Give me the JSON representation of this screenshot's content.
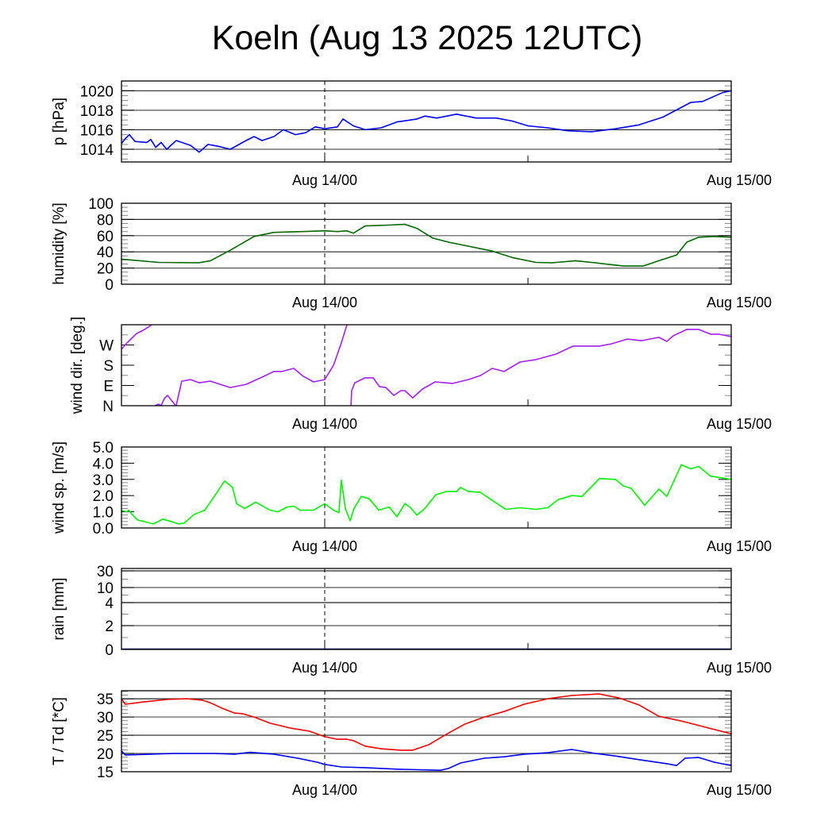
{
  "chart_data": {
    "type": "line",
    "title": "Koeln (Aug 13 2025 12UTC)",
    "x_unit": "hours since Aug 13 2025 12UTC",
    "xlim": [
      0,
      36
    ],
    "x_ticks": [
      {
        "x": 12,
        "label": "Aug 14/00"
      },
      {
        "x": 24,
        "label": ""
      },
      {
        "x": 36,
        "label": "Aug 15/00"
      }
    ],
    "reference_line_x": 12,
    "panels": [
      {
        "id": "pressure",
        "ylabel": "p [hPa]",
        "ylim": [
          1012.7,
          1021.0
        ],
        "grid": [
          1014,
          1016,
          1018,
          1020
        ],
        "y_ticks": [
          {
            "v": 1014,
            "label": "1014"
          },
          {
            "v": 1016,
            "label": "1016"
          },
          {
            "v": 1018,
            "label": "1018"
          },
          {
            "v": 1020,
            "label": "1020"
          }
        ],
        "minor_step": 0.5,
        "series": [
          {
            "name": "p",
            "color": "#0000ee",
            "wrap": false,
            "x": [
              0,
              0.23,
              0.47,
              0.8,
              1.5,
              1.73,
              2.02,
              2.34,
              2.67,
              3.23,
              4.08,
              4.59,
              5.11,
              5.72,
              6.42,
              7.36,
              7.83,
              8.3,
              9.0,
              9.56,
              10.27,
              10.88,
              11.44,
              12.0,
              12.75,
              13.08,
              13.69,
              14.39,
              15.33,
              16.27,
              17.44,
              17.91,
              18.61,
              19.78,
              20.95,
              22.13,
              23.06,
              24.0,
              25.17,
              26.34,
              27.75,
              29.16,
              30.56,
              31.97,
              33.61,
              34.31,
              35.48,
              36.0
            ],
            "y": [
              1014.6,
              1015.1,
              1015.5,
              1014.8,
              1014.7,
              1015.0,
              1014.2,
              1014.7,
              1014.0,
              1014.9,
              1014.4,
              1013.7,
              1014.5,
              1014.3,
              1014.0,
              1014.9,
              1015.3,
              1014.9,
              1015.3,
              1016.0,
              1015.5,
              1015.7,
              1016.3,
              1016.1,
              1016.3,
              1017.1,
              1016.4,
              1016.0,
              1016.2,
              1016.8,
              1017.1,
              1017.4,
              1017.2,
              1017.6,
              1017.2,
              1017.2,
              1016.9,
              1016.4,
              1016.2,
              1015.9,
              1015.8,
              1016.1,
              1016.5,
              1017.3,
              1018.8,
              1018.9,
              1019.8,
              1020.0
            ]
          }
        ]
      },
      {
        "id": "humidity",
        "ylabel": "humidity [%]",
        "ylim": [
          0,
          100
        ],
        "grid": [
          20,
          40,
          60,
          80
        ],
        "y_ticks": [
          {
            "v": 0,
            "label": "0"
          },
          {
            "v": 20,
            "label": "20"
          },
          {
            "v": 40,
            "label": "40"
          },
          {
            "v": 60,
            "label": "60"
          },
          {
            "v": 80,
            "label": "80"
          },
          {
            "v": 100,
            "label": "100"
          }
        ],
        "minor_step": 5,
        "series": [
          {
            "name": "humidity",
            "color": "#006400",
            "wrap": false,
            "x": [
              0,
              2.2,
              4.55,
              5.25,
              6.42,
              7.83,
              9.0,
              10.64,
              12.0,
              12.75,
              13.31,
              13.69,
              14.39,
              15.8,
              16.73,
              17.44,
              18.38,
              19.31,
              20.72,
              21.89,
              23.06,
              24.47,
              25.41,
              26.81,
              27.98,
              29.63,
              30.8,
              31.73,
              32.77,
              33.38,
              34.08,
              35.02,
              36.0
            ],
            "y": [
              31,
              27,
              26.5,
              29,
              42,
              59,
              64,
              65,
              66,
              65,
              66,
              63,
              72,
              73,
              74,
              69,
              57,
              52,
              46,
              41,
              33,
              27,
              26.5,
              29,
              26.5,
              22.5,
              22.5,
              29,
              36,
              52,
              58,
              59,
              58
            ]
          }
        ]
      },
      {
        "id": "wind_direction",
        "ylabel": "wind dir. [deg.]",
        "ylim": [
          0,
          360
        ],
        "grid": [],
        "y_ticks": [
          {
            "v": 0,
            "label": "N"
          },
          {
            "v": 90,
            "label": "E"
          },
          {
            "v": 180,
            "label": "S"
          },
          {
            "v": 270,
            "label": "W"
          }
        ],
        "minor_step": 45,
        "series": [
          {
            "name": "wind direction",
            "color": "#a020f0",
            "wrap": true,
            "x": [
              0,
              0.33,
              0.89,
              1.27,
              1.73,
              2.02,
              2.2,
              2.34,
              2.53,
              2.72,
              3.09,
              3.19,
              3.23,
              3.56,
              4.08,
              4.59,
              5.25,
              6.42,
              7.36,
              8.3,
              9.0,
              9.47,
              10.17,
              10.73,
              11.34,
              12.0,
              12.52,
              12.98,
              13.31,
              13.55,
              13.59,
              13.78,
              14.39,
              14.86,
              15.23,
              15.61,
              16.08,
              16.5,
              16.73,
              17.2,
              17.77,
              18.52,
              19.55,
              20.48,
              21.19,
              21.89,
              22.59,
              23.53,
              24.47,
              25.64,
              26.67,
              27.52,
              28.22,
              28.92,
              29.86,
              30.7,
              31.73,
              32.2,
              32.58,
              33.38,
              34.08,
              34.78,
              35.25,
              36.0
            ],
            "y": [
              251,
              279,
              321,
              335,
              356,
              2,
              7,
              0,
              32,
              46,
              11,
              0,
              0,
              109,
              116,
              102,
              109,
              81,
              95,
              127,
              152,
              152,
              166,
              131,
              106,
              116,
              180,
              279,
              359,
              1,
              67,
              102,
              124,
              124,
              85,
              81,
              46,
              67,
              67,
              35,
              74,
              106,
              99,
              116,
              134,
              166,
              152,
              194,
              205,
              229,
              265,
              265,
              265,
              275,
              296,
              289,
              304,
              286,
              311,
              339,
              339,
              318,
              318,
              307
            ]
          }
        ]
      },
      {
        "id": "wind_speed",
        "ylabel": "wind sp. [m/s]",
        "ylim": [
          0,
          5
        ],
        "grid": [],
        "y_ticks": [
          {
            "v": 0,
            "label": "0.0"
          },
          {
            "v": 1,
            "label": "1.0"
          },
          {
            "v": 2,
            "label": "2.0"
          },
          {
            "v": 3,
            "label": "3.0"
          },
          {
            "v": 4,
            "label": "4.0"
          },
          {
            "v": 5,
            "label": "5.0"
          }
        ],
        "minor_step": 0.2,
        "series": [
          {
            "name": "wind speed",
            "color": "#00ee00",
            "wrap": false,
            "x": [
              0,
              0.33,
              0.42,
              0.66,
              0.94,
              1.5,
              1.88,
              2.44,
              2.91,
              3.38,
              3.7,
              4.31,
              4.92,
              5.48,
              6.09,
              6.56,
              6.8,
              7.27,
              7.92,
              8.77,
              9.23,
              9.8,
              10.17,
              10.55,
              11.34,
              12.0,
              12.52,
              12.84,
              12.98,
              13.22,
              13.5,
              13.73,
              14.16,
              14.63,
              15.19,
              15.8,
              16.27,
              16.73,
              17.02,
              17.44,
              17.91,
              18.56,
              19.17,
              19.78,
              20.02,
              20.48,
              21.19,
              21.89,
              22.69,
              23.53,
              24.47,
              25.17,
              25.78,
              26.58,
              27.19,
              28.22,
              29.16,
              29.63,
              30.09,
              30.89,
              31.73,
              32.2,
              33.05,
              33.61,
              34.08,
              34.78,
              36.0
            ],
            "y": [
              1.08,
              1.0,
              1.1,
              0.8,
              0.5,
              0.35,
              0.25,
              0.55,
              0.4,
              0.25,
              0.3,
              0.85,
              1.1,
              1.95,
              2.9,
              2.5,
              1.5,
              1.2,
              1.6,
              1.1,
              1.0,
              1.3,
              1.35,
              1.1,
              1.1,
              1.5,
              1.1,
              0.95,
              2.95,
              1.2,
              0.45,
              1.2,
              1.95,
              1.8,
              1.1,
              1.3,
              0.7,
              1.5,
              1.3,
              0.8,
              1.2,
              2.05,
              2.25,
              2.25,
              2.5,
              2.25,
              2.2,
              1.7,
              1.15,
              1.25,
              1.15,
              1.25,
              1.75,
              2.0,
              1.95,
              3.05,
              3.0,
              2.6,
              2.45,
              1.4,
              2.4,
              1.95,
              3.9,
              3.65,
              3.8,
              3.2,
              3.0
            ]
          }
        ]
      },
      {
        "id": "rain",
        "ylabel": "rain [mm]",
        "ylim": [
          0,
          30
        ],
        "y_scale": "nonlinear",
        "grid": [
          2,
          4,
          10,
          30
        ],
        "y_ticks": [
          {
            "v": 0,
            "label": "0"
          },
          {
            "v": 2,
            "label": "2"
          },
          {
            "v": 4,
            "label": "4"
          },
          {
            "v": 10,
            "label": "10"
          },
          {
            "v": 30,
            "label": "30"
          }
        ],
        "minor_ticks": [
          1,
          3,
          7,
          20
        ],
        "series": [
          {
            "name": "rain",
            "color": "#000080",
            "wrap": false,
            "x": [
              0,
              36
            ],
            "y": [
              0,
              0
            ]
          }
        ]
      },
      {
        "id": "temperature",
        "ylabel": "T / Td [*C]",
        "ylim": [
          15,
          37.2
        ],
        "grid": [
          20,
          25,
          30,
          35
        ],
        "y_ticks": [
          {
            "v": 15,
            "label": "15"
          },
          {
            "v": 20,
            "label": "20"
          },
          {
            "v": 25,
            "label": "25"
          },
          {
            "v": 30,
            "label": "30"
          },
          {
            "v": 35,
            "label": "35"
          }
        ],
        "minor_step": 1,
        "series": [
          {
            "name": "T",
            "color": "#ee0000",
            "wrap": false,
            "x": [
              0,
              0.23,
              1.27,
              2.67,
              3.84,
              4.78,
              5.25,
              5.95,
              6.66,
              7.13,
              7.83,
              8.77,
              9.94,
              11.11,
              12.0,
              12.75,
              13.31,
              13.69,
              14.39,
              15.33,
              16.5,
              17.2,
              18.14,
              19.08,
              20.25,
              21.42,
              22.59,
              23.77,
              25.17,
              26.58,
              28.22,
              29.39,
              30.56,
              31.73,
              33.05,
              34.31,
              36.0
            ],
            "y": [
              35.0,
              33.5,
              34.1,
              34.8,
              35.0,
              34.6,
              33.9,
              32.4,
              31.1,
              30.9,
              30.0,
              28.3,
              27.0,
              26.1,
              24.6,
              23.9,
              23.9,
              23.5,
              22.0,
              21.3,
              20.9,
              20.9,
              22.4,
              25.0,
              28.0,
              30.0,
              31.5,
              33.5,
              35.0,
              35.9,
              36.3,
              35.2,
              33.3,
              30.2,
              28.9,
              27.4,
              25.4
            ]
          },
          {
            "name": "Td",
            "color": "#0000ee",
            "wrap": false,
            "x": [
              0,
              0.23,
              1.73,
              3.14,
              5.48,
              6.66,
              7.59,
              9.0,
              10.41,
              11.58,
              12.0,
              12.98,
              14.39,
              16.27,
              18.84,
              19.31,
              20.02,
              21.42,
              22.59,
              23.77,
              25.17,
              26.58,
              27.98,
              29.16,
              30.56,
              32.2,
              32.77,
              33.28,
              34.08,
              35.02,
              36.0
            ],
            "y": [
              20.7,
              19.6,
              19.8,
              20.0,
              20.0,
              19.8,
              20.3,
              19.8,
              18.7,
              17.6,
              17.0,
              16.3,
              16.1,
              15.7,
              15.4,
              15.9,
              17.4,
              18.7,
              19.1,
              19.8,
              20.2,
              21.1,
              20.0,
              19.3,
              18.3,
              17.2,
              16.7,
              18.7,
              18.9,
              17.6,
              16.7
            ]
          }
        ]
      }
    ]
  }
}
